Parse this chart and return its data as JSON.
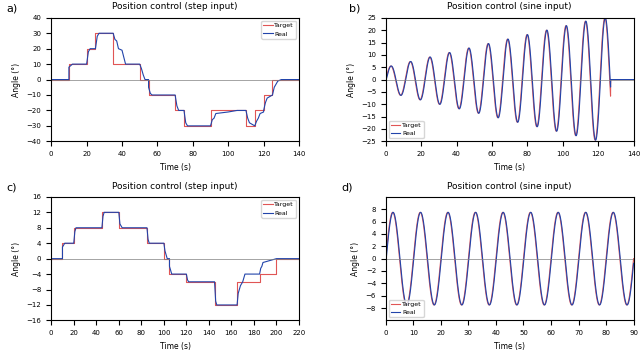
{
  "title_a": "Position control (step input)",
  "title_b": "Position control (sine input)",
  "title_c": "Position control (step input)",
  "title_d": "Position control (sine input)",
  "xlabel": "Time (s)",
  "ylabel": "Angle (°)",
  "legend_target": "Target",
  "legend_real": "Real",
  "color_target": "#e05555",
  "color_real": "#2244aa",
  "panel_labels": [
    "a)",
    "b)",
    "c)",
    "d)"
  ],
  "subplot_a": {
    "xlim": [
      0,
      140
    ],
    "ylim": [
      -40,
      40
    ],
    "yticks": [
      -40,
      -30,
      -20,
      -10,
      0,
      10,
      20,
      30,
      40
    ],
    "xticks": [
      0,
      20,
      40,
      60,
      80,
      100,
      120,
      140
    ],
    "target_steps": [
      [
        0,
        0
      ],
      [
        10,
        0
      ],
      [
        10,
        10
      ],
      [
        20,
        10
      ],
      [
        20,
        20
      ],
      [
        25,
        20
      ],
      [
        25,
        30
      ],
      [
        35,
        30
      ],
      [
        35,
        10
      ],
      [
        50,
        10
      ],
      [
        50,
        0
      ],
      [
        55,
        0
      ],
      [
        55,
        -10
      ],
      [
        70,
        -10
      ],
      [
        70,
        -20
      ],
      [
        75,
        -20
      ],
      [
        75,
        -30
      ],
      [
        90,
        -30
      ],
      [
        90,
        -20
      ],
      [
        110,
        -20
      ],
      [
        110,
        -30
      ],
      [
        115,
        -30
      ],
      [
        115,
        -20
      ],
      [
        120,
        -20
      ],
      [
        120,
        -10
      ],
      [
        125,
        -10
      ],
      [
        125,
        0
      ],
      [
        140,
        0
      ]
    ],
    "real_steps": [
      [
        0,
        0
      ],
      [
        10,
        0
      ],
      [
        10,
        8
      ],
      [
        11,
        9
      ],
      [
        12,
        10
      ],
      [
        20,
        10
      ],
      [
        20,
        10
      ],
      [
        21,
        18
      ],
      [
        22,
        20
      ],
      [
        25,
        20
      ],
      [
        25,
        20
      ],
      [
        26,
        28
      ],
      [
        27,
        30
      ],
      [
        35,
        30
      ],
      [
        36,
        26
      ],
      [
        37,
        25
      ],
      [
        38,
        20
      ],
      [
        40,
        19
      ],
      [
        42,
        10
      ],
      [
        50,
        10
      ],
      [
        51,
        7
      ],
      [
        52,
        3
      ],
      [
        53,
        0
      ],
      [
        55,
        0
      ],
      [
        55,
        -5
      ],
      [
        56,
        -9
      ],
      [
        57,
        -10
      ],
      [
        70,
        -10
      ],
      [
        70,
        -10
      ],
      [
        71,
        -17
      ],
      [
        72,
        -20
      ],
      [
        75,
        -20
      ],
      [
        75,
        -20
      ],
      [
        76,
        -28
      ],
      [
        77,
        -30
      ],
      [
        90,
        -30
      ],
      [
        91,
        -26
      ],
      [
        92,
        -25
      ],
      [
        93,
        -22
      ],
      [
        100,
        -21
      ],
      [
        105,
        -20
      ],
      [
        110,
        -20
      ],
      [
        110,
        -20
      ],
      [
        111,
        -25
      ],
      [
        112,
        -28
      ],
      [
        115,
        -30
      ],
      [
        116,
        -27
      ],
      [
        117,
        -25
      ],
      [
        118,
        -22
      ],
      [
        120,
        -21
      ],
      [
        120,
        -20
      ],
      [
        121,
        -15
      ],
      [
        122,
        -12
      ],
      [
        125,
        -10
      ],
      [
        125,
        -10
      ],
      [
        126,
        -5
      ],
      [
        127,
        -3
      ],
      [
        128,
        -1
      ],
      [
        130,
        0
      ],
      [
        140,
        0
      ]
    ]
  },
  "subplot_b": {
    "xlim": [
      0,
      140
    ],
    "ylim": [
      -25,
      25
    ],
    "yticks": [
      -25,
      -20,
      -15,
      -10,
      -5,
      0,
      5,
      10,
      15,
      20,
      25
    ],
    "xticks": [
      0,
      20,
      40,
      60,
      80,
      100,
      120,
      140
    ],
    "amplitude_growth": true
  },
  "subplot_c": {
    "xlim": [
      0,
      220
    ],
    "ylim": [
      -16,
      16
    ],
    "yticks": [
      -16,
      -12,
      -8,
      -4,
      0,
      4,
      8,
      12,
      16
    ],
    "xticks": [
      0,
      20,
      40,
      60,
      80,
      100,
      120,
      140,
      160,
      180,
      200,
      220
    ],
    "target_steps": [
      [
        0,
        0
      ],
      [
        10,
        0
      ],
      [
        10,
        4
      ],
      [
        20,
        4
      ],
      [
        20,
        8
      ],
      [
        45,
        8
      ],
      [
        45,
        12
      ],
      [
        60,
        12
      ],
      [
        60,
        8
      ],
      [
        85,
        8
      ],
      [
        85,
        4
      ],
      [
        100,
        4
      ],
      [
        100,
        0
      ],
      [
        105,
        0
      ],
      [
        105,
        -4
      ],
      [
        120,
        -4
      ],
      [
        120,
        -6
      ],
      [
        125,
        -6
      ],
      [
        125,
        -6
      ],
      [
        145,
        -6
      ],
      [
        145,
        -12
      ],
      [
        165,
        -12
      ],
      [
        165,
        -6
      ],
      [
        170,
        -6
      ],
      [
        170,
        -6
      ],
      [
        185,
        -6
      ],
      [
        185,
        -4
      ],
      [
        200,
        -4
      ],
      [
        200,
        0
      ],
      [
        220,
        0
      ]
    ],
    "real_steps": [
      [
        0,
        0
      ],
      [
        10,
        0
      ],
      [
        10,
        3
      ],
      [
        11,
        3.5
      ],
      [
        12,
        4
      ],
      [
        20,
        4
      ],
      [
        20,
        4
      ],
      [
        21,
        7
      ],
      [
        22,
        8
      ],
      [
        45,
        8
      ],
      [
        45,
        8
      ],
      [
        46,
        11
      ],
      [
        47,
        12
      ],
      [
        60,
        12
      ],
      [
        61,
        9
      ],
      [
        62,
        8.5
      ],
      [
        63,
        8
      ],
      [
        85,
        8
      ],
      [
        85,
        8
      ],
      [
        86,
        5
      ],
      [
        87,
        4
      ],
      [
        100,
        4
      ],
      [
        101,
        2
      ],
      [
        102,
        1
      ],
      [
        103,
        0
      ],
      [
        105,
        0
      ],
      [
        105,
        -2
      ],
      [
        106,
        -3
      ],
      [
        107,
        -4
      ],
      [
        120,
        -4
      ],
      [
        120,
        -4
      ],
      [
        121,
        -5.5
      ],
      [
        122,
        -6
      ],
      [
        125,
        -6
      ],
      [
        145,
        -6
      ],
      [
        145,
        -6
      ],
      [
        146,
        -11
      ],
      [
        147,
        -12
      ],
      [
        165,
        -12
      ],
      [
        166,
        -9
      ],
      [
        167,
        -8
      ],
      [
        168,
        -7
      ],
      [
        170,
        -6
      ],
      [
        170,
        -6
      ],
      [
        171,
        -5
      ],
      [
        172,
        -4
      ],
      [
        185,
        -4
      ],
      [
        186,
        -2.5
      ],
      [
        187,
        -2
      ],
      [
        188,
        -1
      ],
      [
        200,
        0
      ],
      [
        220,
        0
      ]
    ]
  },
  "subplot_d": {
    "xlim": [
      0,
      90
    ],
    "ylim": [
      -10,
      10
    ],
    "yticks": [
      -8,
      -6,
      -4,
      -2,
      0,
      2,
      4,
      6,
      8
    ],
    "xticks": [
      0,
      10,
      20,
      30,
      40,
      50,
      60,
      70,
      80,
      90
    ],
    "amplitude": 7.5
  }
}
